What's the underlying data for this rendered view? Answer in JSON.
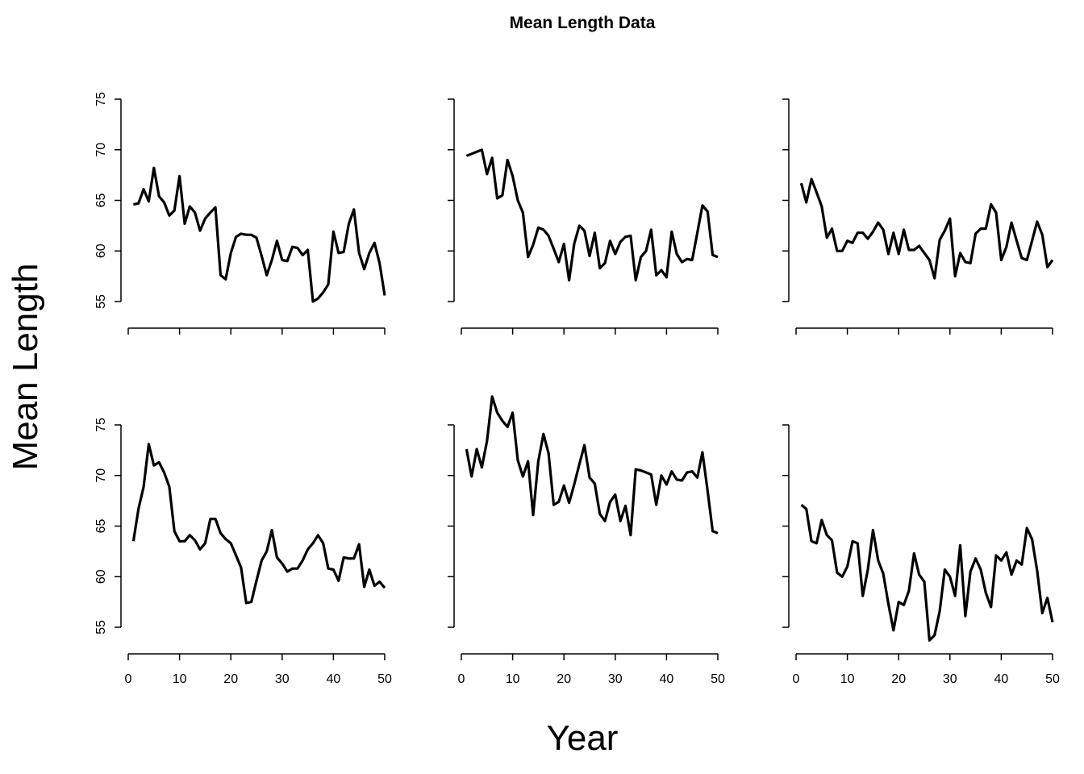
{
  "chart_data": {
    "type": "line",
    "title": "Mean Length Data",
    "xlabel": "Year",
    "ylabel": "Mean Length",
    "xlim": [
      0,
      50
    ],
    "ylim": [
      55,
      75
    ],
    "x_ticks": [
      0,
      10,
      20,
      30,
      40,
      50
    ],
    "y_ticks": [
      55,
      60,
      65,
      70,
      75
    ],
    "grid": false,
    "layout": "2 rows x 3 columns; y tick labels only on left column; x tick labels only on bottom row",
    "panels": [
      {
        "x": [
          1,
          2,
          3,
          4,
          5,
          6,
          7,
          8,
          9,
          10,
          11,
          12,
          13,
          14,
          15,
          16,
          17,
          18,
          19,
          20,
          21,
          22,
          23,
          24,
          25,
          26,
          27,
          28,
          29,
          30,
          31,
          32,
          33,
          34,
          35,
          36,
          37,
          38,
          39,
          40,
          41,
          42,
          43,
          44,
          45,
          46,
          47,
          48,
          49,
          50
        ],
        "values": [
          64.6,
          64.7,
          66.1,
          64.9,
          68.2,
          65.4,
          64.8,
          63.5,
          64.0,
          67.4,
          62.7,
          64.4,
          63.8,
          62.0,
          63.2,
          63.8,
          64.3,
          57.6,
          57.2,
          59.8,
          61.4,
          61.7,
          61.6,
          61.6,
          61.3,
          59.5,
          57.6,
          59.1,
          61.0,
          59.1,
          59.0,
          60.4,
          60.3,
          59.6,
          60.1,
          55.0,
          55.3,
          55.9,
          56.7,
          61.9,
          59.8,
          59.9,
          62.7,
          64.1,
          59.8,
          58.2,
          59.8,
          60.8,
          58.8,
          55.6
        ]
      },
      {
        "x": [
          1,
          2,
          3,
          4,
          5,
          6,
          7,
          8,
          9,
          10,
          11,
          12,
          13,
          14,
          15,
          16,
          17,
          18,
          19,
          20,
          21,
          22,
          23,
          24,
          25,
          26,
          27,
          28,
          29,
          30,
          31,
          32,
          33,
          34,
          35,
          36,
          37,
          38,
          39,
          40,
          41,
          42,
          43,
          44,
          45,
          46,
          47,
          48,
          49,
          50
        ],
        "values": [
          69.4,
          69.6,
          69.8,
          70.0,
          67.6,
          69.2,
          65.2,
          65.5,
          69.0,
          67.4,
          65.0,
          63.8,
          59.4,
          60.6,
          62.3,
          62.1,
          61.5,
          60.2,
          58.9,
          60.7,
          57.1,
          60.7,
          62.5,
          62.0,
          59.5,
          61.8,
          58.3,
          58.8,
          61.0,
          59.7,
          60.9,
          61.4,
          61.5,
          57.1,
          59.4,
          60.0,
          62.1,
          57.6,
          58.1,
          57.4,
          61.9,
          59.7,
          58.9,
          59.2,
          59.1,
          61.8,
          64.5,
          63.9,
          59.6,
          59.4
        ]
      },
      {
        "x": [
          1,
          2,
          3,
          4,
          5,
          6,
          7,
          8,
          9,
          10,
          11,
          12,
          13,
          14,
          15,
          16,
          17,
          18,
          19,
          20,
          21,
          22,
          23,
          24,
          25,
          26,
          27,
          28,
          29,
          30,
          31,
          32,
          33,
          34,
          35,
          36,
          37,
          38,
          39,
          40,
          41,
          42,
          43,
          44,
          45,
          46,
          47,
          48,
          49,
          50
        ],
        "values": [
          66.7,
          64.8,
          67.1,
          65.8,
          64.4,
          61.3,
          62.2,
          60.0,
          60.0,
          61.0,
          60.8,
          61.8,
          61.8,
          61.2,
          61.9,
          62.8,
          62.1,
          59.7,
          61.8,
          59.7,
          62.1,
          60.1,
          60.1,
          60.5,
          59.8,
          59.1,
          57.3,
          61.1,
          62.0,
          63.2,
          57.5,
          59.8,
          58.9,
          58.8,
          61.7,
          62.2,
          62.2,
          64.6,
          63.8,
          59.1,
          60.4,
          62.8,
          61.0,
          59.3,
          59.1,
          61.0,
          62.9,
          61.6,
          58.4,
          59.1
        ]
      },
      {
        "x": [
          1,
          2,
          3,
          4,
          5,
          6,
          7,
          8,
          9,
          10,
          11,
          12,
          13,
          14,
          15,
          16,
          17,
          18,
          19,
          20,
          21,
          22,
          23,
          24,
          25,
          26,
          27,
          28,
          29,
          30,
          31,
          32,
          33,
          34,
          35,
          36,
          37,
          38,
          39,
          40,
          41,
          42,
          43,
          44,
          45,
          46,
          47,
          48,
          49,
          50
        ],
        "values": [
          63.5,
          66.7,
          68.9,
          73.1,
          71.0,
          71.3,
          70.3,
          68.9,
          64.5,
          63.5,
          63.5,
          64.1,
          63.6,
          62.7,
          63.3,
          65.7,
          65.7,
          64.3,
          63.7,
          63.3,
          62.1,
          60.9,
          57.4,
          57.5,
          59.6,
          61.6,
          62.5,
          64.6,
          61.9,
          61.3,
          60.5,
          60.8,
          60.8,
          61.6,
          62.7,
          63.3,
          64.1,
          63.3,
          60.8,
          60.7,
          59.6,
          61.9,
          61.8,
          61.8,
          63.2,
          59.0,
          60.7,
          59.1,
          59.5,
          58.9
        ]
      },
      {
        "x": [
          1,
          2,
          3,
          4,
          5,
          6,
          7,
          8,
          9,
          10,
          11,
          12,
          13,
          14,
          15,
          16,
          17,
          18,
          19,
          20,
          21,
          22,
          23,
          24,
          25,
          26,
          27,
          28,
          29,
          30,
          31,
          32,
          33,
          34,
          35,
          36,
          37,
          38,
          39,
          40,
          41,
          42,
          43,
          44,
          45,
          46,
          47,
          48,
          49,
          50
        ],
        "values": [
          72.6,
          69.9,
          72.6,
          70.8,
          73.4,
          77.8,
          76.2,
          75.4,
          74.8,
          76.2,
          71.5,
          69.9,
          71.4,
          66.1,
          71.4,
          74.1,
          72.2,
          67.1,
          67.4,
          69.0,
          67.3,
          69.1,
          71.1,
          73.0,
          69.8,
          69.2,
          66.2,
          65.5,
          67.4,
          68.1,
          65.5,
          67.0,
          64.1,
          70.6,
          70.5,
          70.3,
          70.1,
          67.1,
          70.0,
          69.1,
          70.4,
          69.6,
          69.5,
          70.3,
          70.4,
          69.8,
          72.3,
          68.5,
          64.5,
          64.3
        ]
      },
      {
        "x": [
          1,
          2,
          3,
          4,
          5,
          6,
          7,
          8,
          9,
          10,
          11,
          12,
          13,
          14,
          15,
          16,
          17,
          18,
          19,
          20,
          21,
          22,
          23,
          24,
          25,
          26,
          27,
          28,
          29,
          30,
          31,
          32,
          33,
          34,
          35,
          36,
          37,
          38,
          39,
          40,
          41,
          42,
          43,
          44,
          45,
          46,
          47,
          48,
          49,
          50
        ],
        "values": [
          67.1,
          66.7,
          63.5,
          63.3,
          65.6,
          64.1,
          63.6,
          60.4,
          60.0,
          61.0,
          63.5,
          63.3,
          58.1,
          60.7,
          64.6,
          61.6,
          60.3,
          57.3,
          54.7,
          57.5,
          57.2,
          58.6,
          62.3,
          60.2,
          59.5,
          53.7,
          54.2,
          56.6,
          60.7,
          60.0,
          58.1,
          63.1,
          56.1,
          60.5,
          61.8,
          60.7,
          58.4,
          57.0,
          62.1,
          61.6,
          62.4,
          60.2,
          61.6,
          61.2,
          64.8,
          63.7,
          60.6,
          56.4,
          57.9,
          55.5
        ]
      }
    ]
  }
}
